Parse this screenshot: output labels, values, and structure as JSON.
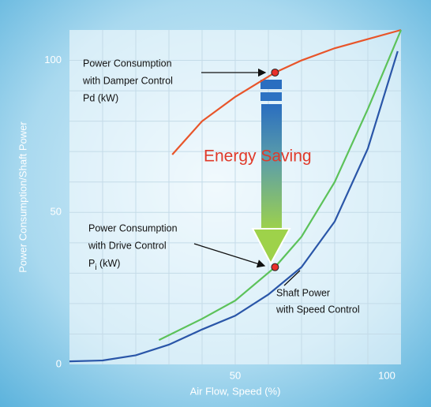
{
  "chart_data": {
    "type": "line",
    "xlabel": "Air Flow, Speed (%)",
    "ylabel": "Power Consumption/Shaft Power",
    "xlim": [
      0,
      100
    ],
    "ylim": [
      0,
      110
    ],
    "xticks": [
      50,
      100
    ],
    "yticks": [
      0,
      50,
      100
    ],
    "xgrid": [
      10,
      20,
      30,
      40,
      50,
      60,
      70,
      80,
      90
    ],
    "ygrid": [
      10,
      20,
      30,
      40,
      50,
      60,
      70,
      80,
      90,
      100
    ],
    "series": [
      {
        "name": "Power Consumption with Damper Control Pd (kW)",
        "color": "#e8552a",
        "x": [
          31,
          40,
          50,
          62,
          70,
          80,
          90,
          100
        ],
        "values": [
          69,
          80,
          88,
          96,
          100,
          104,
          107,
          110
        ]
      },
      {
        "name": "Power Consumption with Drive Control Pi (kW)",
        "color": "#5cc25a",
        "x": [
          27,
          40,
          50,
          62,
          70,
          80,
          90,
          100
        ],
        "values": [
          8,
          15,
          21,
          32,
          42,
          60,
          84,
          110
        ]
      },
      {
        "name": "Shaft Power with Speed Control",
        "color": "#2a56a8",
        "x": [
          0,
          10,
          20,
          30,
          40,
          50,
          60,
          70,
          80,
          90,
          99
        ],
        "values": [
          1,
          1.3,
          3,
          6.5,
          11.5,
          16,
          23,
          32,
          47,
          71,
          103
        ]
      }
    ],
    "annotations": {
      "damper": [
        "Power Consumption",
        "with Damper Control",
        "Pd (kW)"
      ],
      "drive": [
        "Power Consumption",
        "with Drive Control"
      ],
      "drive_unit": {
        "base": "P",
        "sub": "i",
        "rest": " (kW)"
      },
      "shaft": [
        "Shaft Power",
        "with Speed Control"
      ],
      "saving": "Energy Saving"
    }
  }
}
